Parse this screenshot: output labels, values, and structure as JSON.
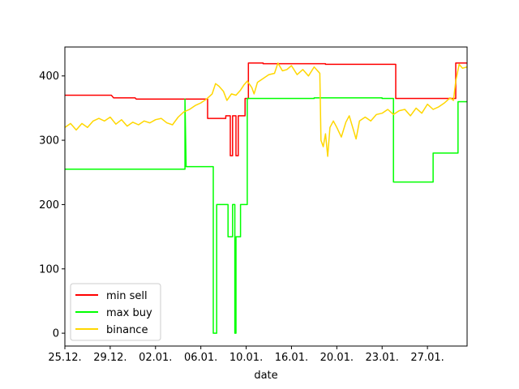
{
  "chart_data": {
    "type": "line",
    "xlabel": "date",
    "ylabel": "",
    "x_unit": "days since 25.12.",
    "xlim": [
      0,
      35.5
    ],
    "ylim": [
      -20,
      445
    ],
    "xticks": [
      {
        "v": 0,
        "label": "25.12."
      },
      {
        "v": 4,
        "label": "29.12."
      },
      {
        "v": 8,
        "label": "02.01."
      },
      {
        "v": 12,
        "label": "06.01."
      },
      {
        "v": 16,
        "label": "10.01."
      },
      {
        "v": 20,
        "label": "16.01."
      },
      {
        "v": 24,
        "label": "20.01."
      },
      {
        "v": 28,
        "label": "23.01."
      },
      {
        "v": 32,
        "label": "27.01."
      }
    ],
    "yticks": [
      0,
      100,
      200,
      300,
      400
    ],
    "legend_position": "lower-left",
    "series": [
      {
        "name": "min sell",
        "color": "#ff0000",
        "points": [
          [
            0,
            370
          ],
          [
            4.1,
            370
          ],
          [
            4.3,
            366
          ],
          [
            6.2,
            366
          ],
          [
            6.3,
            364
          ],
          [
            12.6,
            364
          ],
          [
            12.6,
            334
          ],
          [
            14.2,
            334
          ],
          [
            14.2,
            338
          ],
          [
            14.6,
            338
          ],
          [
            14.6,
            276
          ],
          [
            14.8,
            276
          ],
          [
            14.8,
            338
          ],
          [
            15.1,
            338
          ],
          [
            15.1,
            276
          ],
          [
            15.3,
            276
          ],
          [
            15.3,
            338
          ],
          [
            15.9,
            338
          ],
          [
            15.9,
            365
          ],
          [
            16.2,
            365
          ],
          [
            16.2,
            420
          ],
          [
            17.5,
            420
          ],
          [
            17.5,
            419
          ],
          [
            23,
            419
          ],
          [
            23,
            418
          ],
          [
            29.2,
            418
          ],
          [
            29.2,
            365
          ],
          [
            34.5,
            365
          ],
          [
            34.5,
            420
          ],
          [
            35.5,
            420
          ]
        ]
      },
      {
        "name": "max buy",
        "color": "#00ff00",
        "points": [
          [
            0,
            255
          ],
          [
            10.6,
            255
          ],
          [
            10.6,
            364
          ],
          [
            10.7,
            259
          ],
          [
            13.1,
            259
          ],
          [
            13.1,
            0
          ],
          [
            13.4,
            0
          ],
          [
            13.4,
            200
          ],
          [
            14.4,
            200
          ],
          [
            14.4,
            150
          ],
          [
            14.8,
            150
          ],
          [
            14.8,
            200
          ],
          [
            15,
            200
          ],
          [
            15,
            0
          ],
          [
            15.1,
            0
          ],
          [
            15.1,
            150
          ],
          [
            15.5,
            150
          ],
          [
            15.5,
            200
          ],
          [
            16.1,
            200
          ],
          [
            16.1,
            365
          ],
          [
            22,
            365
          ],
          [
            22,
            366
          ],
          [
            28,
            366
          ],
          [
            28,
            365
          ],
          [
            29,
            365
          ],
          [
            29,
            235
          ],
          [
            32.5,
            235
          ],
          [
            32.5,
            280
          ],
          [
            34.7,
            280
          ],
          [
            34.7,
            360
          ],
          [
            35.5,
            360
          ]
        ]
      },
      {
        "name": "binance",
        "color": "#ffd700",
        "points": [
          [
            0,
            320
          ],
          [
            0.5,
            326
          ],
          [
            1,
            316
          ],
          [
            1.5,
            326
          ],
          [
            2,
            320
          ],
          [
            2.5,
            330
          ],
          [
            3,
            334
          ],
          [
            3.5,
            330
          ],
          [
            4,
            336
          ],
          [
            4.5,
            325
          ],
          [
            5,
            332
          ],
          [
            5.5,
            322
          ],
          [
            6,
            328
          ],
          [
            6.5,
            324
          ],
          [
            7,
            330
          ],
          [
            7.5,
            327
          ],
          [
            8,
            332
          ],
          [
            8.5,
            334
          ],
          [
            9,
            327
          ],
          [
            9.5,
            324
          ],
          [
            10,
            336
          ],
          [
            10.5,
            344
          ],
          [
            11,
            348
          ],
          [
            11.5,
            354
          ],
          [
            12,
            358
          ],
          [
            12.5,
            364
          ],
          [
            13,
            372
          ],
          [
            13.3,
            388
          ],
          [
            13.6,
            384
          ],
          [
            14,
            376
          ],
          [
            14.3,
            362
          ],
          [
            14.7,
            372
          ],
          [
            15.1,
            370
          ],
          [
            15.5,
            378
          ],
          [
            15.8,
            386
          ],
          [
            16.1,
            392
          ],
          [
            16.5,
            382
          ],
          [
            16.7,
            372
          ],
          [
            17,
            390
          ],
          [
            17.5,
            396
          ],
          [
            18,
            402
          ],
          [
            18.5,
            404
          ],
          [
            18.8,
            420
          ],
          [
            19.2,
            408
          ],
          [
            19.6,
            410
          ],
          [
            20,
            416
          ],
          [
            20.5,
            402
          ],
          [
            21,
            410
          ],
          [
            21.5,
            400
          ],
          [
            22,
            414
          ],
          [
            22.5,
            404
          ],
          [
            22.6,
            300
          ],
          [
            22.8,
            290
          ],
          [
            23,
            310
          ],
          [
            23.2,
            275
          ],
          [
            23.4,
            320
          ],
          [
            23.7,
            330
          ],
          [
            24,
            320
          ],
          [
            24.4,
            305
          ],
          [
            24.8,
            328
          ],
          [
            25.1,
            338
          ],
          [
            25.4,
            320
          ],
          [
            25.7,
            302
          ],
          [
            26,
            330
          ],
          [
            26.5,
            336
          ],
          [
            27,
            330
          ],
          [
            27.5,
            340
          ],
          [
            28,
            342
          ],
          [
            28.5,
            348
          ],
          [
            29,
            340
          ],
          [
            29.5,
            346
          ],
          [
            30,
            348
          ],
          [
            30.5,
            338
          ],
          [
            31,
            350
          ],
          [
            31.5,
            342
          ],
          [
            32,
            356
          ],
          [
            32.5,
            348
          ],
          [
            33,
            352
          ],
          [
            33.5,
            358
          ],
          [
            34,
            366
          ],
          [
            34.3,
            362
          ],
          [
            34.5,
            392
          ],
          [
            34.8,
            418
          ],
          [
            35.1,
            412
          ],
          [
            35.5,
            414
          ]
        ]
      }
    ]
  }
}
